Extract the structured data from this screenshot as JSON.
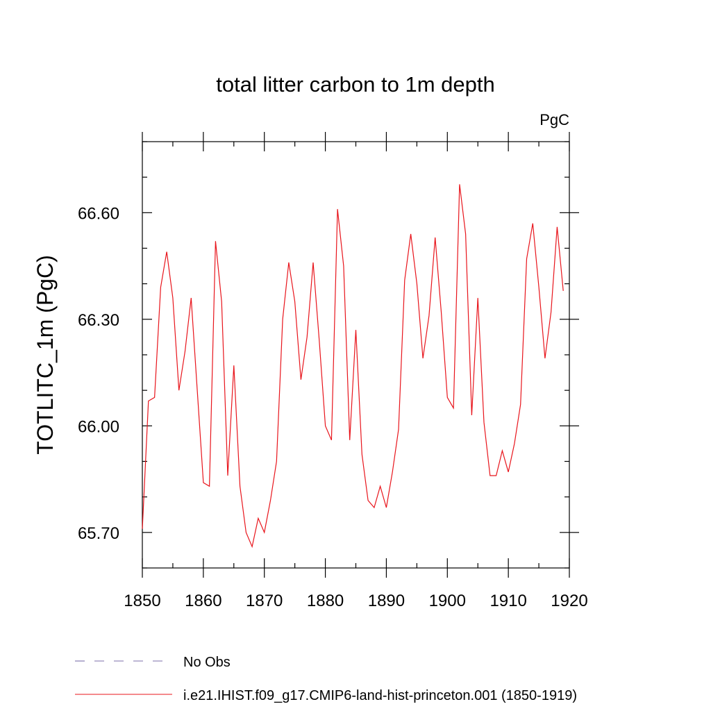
{
  "chart_data": {
    "type": "line",
    "title": "total litter carbon to 1m depth",
    "units": "PgC",
    "xlabel": "",
    "ylabel": "TOTLITC_1m  (PgC)",
    "xlim": [
      1850,
      1920
    ],
    "ylim": [
      65.6,
      66.8
    ],
    "xticks": [
      1850,
      1860,
      1870,
      1880,
      1890,
      1900,
      1910,
      1920
    ],
    "xtick_labels": [
      "1850",
      "1860",
      "1870",
      "1880",
      "1890",
      "1900",
      "1910",
      "1920"
    ],
    "yticks": [
      65.7,
      66.0,
      66.3,
      66.6
    ],
    "ytick_labels": [
      "65.70",
      "66.00",
      "66.30",
      "66.60"
    ],
    "legend": [
      {
        "label": "No Obs",
        "color": "#7b6fa8",
        "style": "dashed"
      },
      {
        "label": "i.e21.IHIST.f09_g17.CMIP6-land-hist-princeton.001 (1850-1919)",
        "color": "#e8141b",
        "style": "solid"
      }
    ],
    "series": [
      {
        "name": "i.e21.IHIST.f09_g17.CMIP6-land-hist-princeton.001 (1850-1919)",
        "color": "#e8141b",
        "x": [
          1850,
          1851,
          1852,
          1853,
          1854,
          1855,
          1856,
          1857,
          1858,
          1859,
          1860,
          1861,
          1862,
          1863,
          1864,
          1865,
          1866,
          1867,
          1868,
          1869,
          1870,
          1871,
          1872,
          1873,
          1874,
          1875,
          1876,
          1877,
          1878,
          1879,
          1880,
          1881,
          1882,
          1883,
          1884,
          1885,
          1886,
          1887,
          1888,
          1889,
          1890,
          1891,
          1892,
          1893,
          1894,
          1895,
          1896,
          1897,
          1898,
          1899,
          1900,
          1901,
          1902,
          1903,
          1904,
          1905,
          1906,
          1907,
          1908,
          1909,
          1910,
          1911,
          1912,
          1913,
          1914,
          1915,
          1916,
          1917,
          1918,
          1919
        ],
        "values": [
          65.71,
          66.07,
          66.08,
          66.39,
          66.49,
          66.36,
          66.1,
          66.21,
          66.36,
          66.1,
          65.84,
          65.83,
          66.52,
          66.35,
          65.86,
          66.17,
          65.83,
          65.7,
          65.66,
          65.74,
          65.7,
          65.79,
          65.9,
          66.3,
          66.46,
          66.35,
          66.13,
          66.25,
          66.46,
          66.24,
          66.0,
          65.96,
          66.61,
          66.45,
          65.96,
          66.27,
          65.92,
          65.79,
          65.77,
          65.83,
          65.77,
          65.87,
          65.99,
          66.41,
          66.54,
          66.4,
          66.19,
          66.31,
          66.53,
          66.32,
          66.08,
          66.05,
          66.68,
          66.54,
          66.03,
          66.36,
          66.01,
          65.86,
          65.86,
          65.93,
          65.87,
          65.95,
          66.06,
          66.47,
          66.57,
          66.39,
          66.19,
          66.32,
          66.56,
          66.38
        ]
      }
    ]
  }
}
